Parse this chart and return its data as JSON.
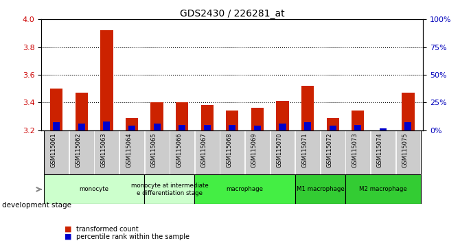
{
  "title": "GDS2430 / 226281_at",
  "samples": [
    "GSM115061",
    "GSM115062",
    "GSM115063",
    "GSM115064",
    "GSM115065",
    "GSM115066",
    "GSM115067",
    "GSM115068",
    "GSM115069",
    "GSM115070",
    "GSM115071",
    "GSM115072",
    "GSM115073",
    "GSM115074",
    "GSM115075"
  ],
  "transformed_count": [
    3.5,
    3.47,
    3.92,
    3.29,
    3.4,
    3.4,
    3.38,
    3.34,
    3.36,
    3.41,
    3.52,
    3.29,
    3.34,
    3.2,
    3.47
  ],
  "percentile_rank": [
    7,
    6,
    8,
    4,
    6,
    5,
    5,
    5,
    4,
    6,
    7,
    4,
    5,
    2,
    7
  ],
  "ylim_left": [
    3.2,
    4.0
  ],
  "ylim_right": [
    0,
    100
  ],
  "yticks_left": [
    3.2,
    3.4,
    3.6,
    3.8,
    4.0
  ],
  "yticks_right": [
    0,
    25,
    50,
    75,
    100
  ],
  "ytick_labels_right": [
    "0%",
    "25%",
    "50%",
    "75%",
    "100%"
  ],
  "group_spans": [
    {
      "label": "monocyte",
      "start": 0,
      "end": 3,
      "color": "#ccffcc"
    },
    {
      "label": "monocyte at intermediate\ne differentiation stage",
      "start": 4,
      "end": 5,
      "color": "#ccffcc"
    },
    {
      "label": "macrophage",
      "start": 6,
      "end": 9,
      "color": "#44ee44"
    },
    {
      "label": "M1 macrophage",
      "start": 10,
      "end": 11,
      "color": "#33cc33"
    },
    {
      "label": "M2 macrophage",
      "start": 12,
      "end": 14,
      "color": "#33cc33"
    }
  ],
  "bar_color_red": "#cc2200",
  "bar_color_blue": "#0000cc",
  "bar_width": 0.5,
  "background_color": "#ffffff",
  "ylabel_left_color": "#cc0000",
  "ylabel_right_color": "#0000bb",
  "cell_bg_color": "#cccccc",
  "grid_color": "black"
}
